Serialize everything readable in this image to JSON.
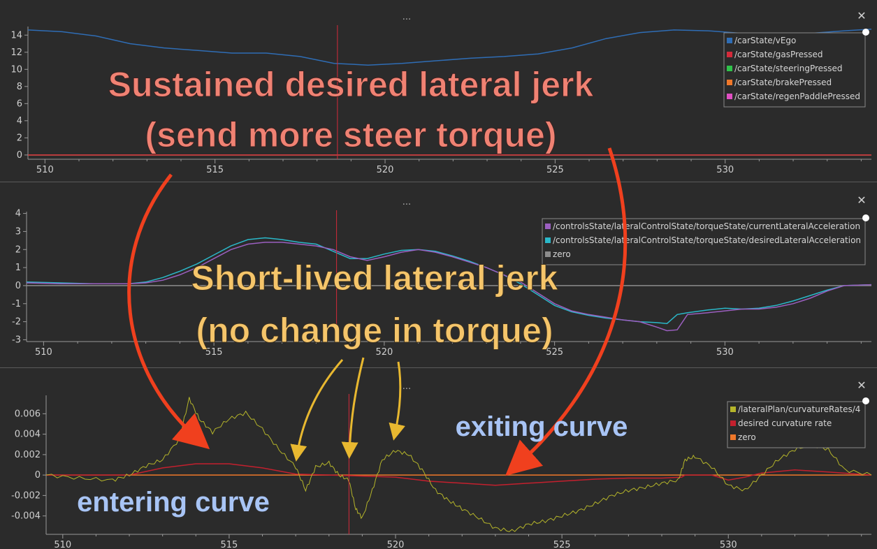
{
  "panels": [
    {
      "id": "top",
      "menu_label": "...",
      "close_label": "✕",
      "legend": [
        {
          "label": "/carState/vEgo",
          "color": "#2f6db5"
        },
        {
          "label": "/carState/gasPressed",
          "color": "#d42a3a"
        },
        {
          "label": "/carState/steeringPressed",
          "color": "#2fc24a"
        },
        {
          "label": "/carState/brakePressed",
          "color": "#f0782a"
        },
        {
          "label": "/carState/regenPaddlePressed",
          "color": "#e04fc2"
        }
      ]
    },
    {
      "id": "middle",
      "menu_label": "...",
      "close_label": "✕",
      "legend": [
        {
          "label": "/controlsState/lateralControlState/torqueState/currentLateralAcceleration",
          "color": "#9b5fc0"
        },
        {
          "label": "/controlsState/lateralControlState/torqueState/desiredLateralAcceleration",
          "color": "#2ab8c9"
        },
        {
          "label": "zero",
          "color": "#8c8c8c"
        }
      ]
    },
    {
      "id": "bottom",
      "menu_label": "...",
      "close_label": "✕",
      "legend": [
        {
          "label": "/lateralPlan/curvatureRates/4",
          "color": "#b5b52a"
        },
        {
          "label": "desired curvature rate",
          "color": "#c4202e"
        },
        {
          "label": "zero",
          "color": "#f0782a"
        }
      ]
    }
  ],
  "annotations": {
    "sustained_line1": "Sustained desired lateral jerk",
    "sustained_line2": "(send more steer torque)",
    "short_line1": "Short-lived lateral jerk",
    "short_line2": "(no change in torque)",
    "exiting": "exiting curve",
    "entering": "entering curve",
    "colors": {
      "sustained": "#f08273",
      "short": "#f5c56a",
      "curve": "#a8c4f5",
      "arrow_red": "#f0401e",
      "arrow_yellow": "#e8b830",
      "cursor": "#d42a3a"
    }
  },
  "chart_data": [
    {
      "type": "line",
      "title": "",
      "xlabel": "",
      "ylabel": "",
      "xlim": [
        509.5,
        534.3
      ],
      "ylim": [
        -0.5,
        15
      ],
      "x_ticks": [
        510,
        515,
        520,
        525,
        530
      ],
      "y_ticks": [
        0,
        2,
        4,
        6,
        8,
        10,
        12,
        14
      ],
      "cursor_x": 518.6,
      "series": [
        {
          "name": "/carState/vEgo",
          "x": [
            509.5,
            510.5,
            511.5,
            512.5,
            513.5,
            514.5,
            515.5,
            516.5,
            517.5,
            518.5,
            519.5,
            520.5,
            521.5,
            522.5,
            523.5,
            524.5,
            525.5,
            526.5,
            527.5,
            528.5,
            529.5,
            530.5,
            531.5,
            532.5,
            533.5,
            534.3
          ],
          "y": [
            14.6,
            14.4,
            13.9,
            13.0,
            12.5,
            12.2,
            11.9,
            11.9,
            11.5,
            10.7,
            10.5,
            10.7,
            11.0,
            11.3,
            11.5,
            11.8,
            12.5,
            13.6,
            14.3,
            14.6,
            14.5,
            14.2,
            14.0,
            14.2,
            14.5,
            14.7
          ]
        },
        {
          "name": "/carState/gasPressed",
          "x": [
            509.5,
            534.3
          ],
          "y": [
            0,
            0
          ]
        },
        {
          "name": "/carState/steeringPressed",
          "x": [
            509.5,
            534.3
          ],
          "y": [
            0,
            0
          ]
        },
        {
          "name": "/carState/brakePressed",
          "x": [
            509.5,
            534.3
          ],
          "y": [
            0,
            0
          ]
        },
        {
          "name": "/carState/regenPaddlePressed",
          "x": [
            509.5,
            534.3
          ],
          "y": [
            0,
            0
          ]
        }
      ]
    },
    {
      "type": "line",
      "title": "",
      "xlabel": "",
      "ylabel": "",
      "xlim": [
        509.5,
        534.3
      ],
      "ylim": [
        -3.1,
        4.1
      ],
      "x_ticks": [
        510,
        515,
        520,
        525,
        530
      ],
      "y_ticks": [
        -3,
        -2,
        -1,
        0,
        1,
        2,
        3,
        4
      ],
      "cursor_x": 518.6,
      "series": [
        {
          "name": "/controlsState/lateralControlState/torqueState/currentLateralAcceleration",
          "x": [
            509.5,
            510.5,
            511.5,
            512.5,
            513.0,
            513.5,
            514.0,
            514.5,
            515.0,
            515.5,
            516.0,
            516.5,
            517.0,
            517.5,
            518.0,
            518.5,
            519.0,
            519.5,
            520.0,
            520.5,
            521.0,
            521.5,
            522.0,
            522.5,
            523.0,
            523.5,
            524.0,
            524.5,
            525.0,
            525.5,
            526.0,
            526.5,
            527.0,
            527.5,
            528.0,
            528.3,
            528.6,
            528.9,
            529.5,
            530.0,
            530.5,
            531.0,
            531.5,
            532.0,
            532.5,
            533.0,
            533.5,
            534.3
          ],
          "y": [
            0.15,
            0.1,
            0.1,
            0.1,
            0.15,
            0.3,
            0.6,
            1.0,
            1.5,
            2.0,
            2.3,
            2.4,
            2.4,
            2.3,
            2.2,
            2.0,
            1.6,
            1.4,
            1.6,
            1.85,
            2.0,
            1.85,
            1.6,
            1.3,
            1.0,
            0.6,
            0.2,
            -0.4,
            -1.0,
            -1.4,
            -1.6,
            -1.75,
            -1.9,
            -2.0,
            -2.3,
            -2.5,
            -2.45,
            -1.6,
            -1.5,
            -1.4,
            -1.3,
            -1.3,
            -1.2,
            -1.0,
            -0.7,
            -0.3,
            0.0,
            0.05
          ]
        },
        {
          "name": "/controlsState/lateralControlState/torqueState/desiredLateralAcceleration",
          "x": [
            509.5,
            510.5,
            511.5,
            512.5,
            513.0,
            513.5,
            514.0,
            514.5,
            515.0,
            515.5,
            516.0,
            516.5,
            517.0,
            517.5,
            518.0,
            518.5,
            519.0,
            519.5,
            520.0,
            520.5,
            521.0,
            521.5,
            522.0,
            522.5,
            523.0,
            523.5,
            524.0,
            524.5,
            525.0,
            525.5,
            526.0,
            526.5,
            527.0,
            527.5,
            528.0,
            528.3,
            528.6,
            528.9,
            529.5,
            530.0,
            530.5,
            531.0,
            531.5,
            532.0,
            532.5,
            533.0,
            533.5,
            534.3
          ],
          "y": [
            0.2,
            0.15,
            0.1,
            0.1,
            0.2,
            0.45,
            0.8,
            1.2,
            1.7,
            2.2,
            2.55,
            2.65,
            2.55,
            2.4,
            2.3,
            1.9,
            1.5,
            1.5,
            1.75,
            1.95,
            2.0,
            1.9,
            1.65,
            1.35,
            1.0,
            0.6,
            0.1,
            -0.5,
            -1.1,
            -1.45,
            -1.65,
            -1.8,
            -1.9,
            -2.0,
            -2.05,
            -2.1,
            -1.6,
            -1.5,
            -1.35,
            -1.25,
            -1.3,
            -1.25,
            -1.1,
            -0.85,
            -0.55,
            -0.25,
            0.0,
            0.05
          ]
        },
        {
          "name": "zero",
          "x": [
            509.5,
            534.3
          ],
          "y": [
            0,
            0
          ]
        }
      ]
    },
    {
      "type": "line",
      "title": "",
      "xlabel": "",
      "ylabel": "",
      "xlim": [
        509.5,
        534.3
      ],
      "ylim": [
        -0.0058,
        0.0078
      ],
      "x_ticks": [
        510,
        515,
        520,
        525,
        530
      ],
      "y_ticks": [
        -0.004,
        -0.002,
        0,
        0.002,
        0.004,
        0.006
      ],
      "y_tick_labels": [
        "-0.004",
        "-0.002",
        "0",
        "0.002",
        "0.004",
        "0.006"
      ],
      "cursor_x": 518.6,
      "series": [
        {
          "name": "/lateralPlan/curvatureRates/4",
          "x": [
            509.5,
            510.5,
            511.5,
            512.0,
            512.5,
            513.0,
            513.5,
            513.8,
            514.1,
            514.5,
            515.0,
            515.5,
            516.0,
            516.5,
            517.0,
            517.3,
            517.6,
            518.0,
            518.3,
            518.6,
            518.8,
            519.0,
            519.3,
            519.6,
            520.0,
            520.4,
            520.8,
            521.2,
            521.6,
            522.0,
            522.5,
            523.0,
            523.5,
            524.0,
            524.5,
            525.0,
            525.5,
            526.0,
            526.5,
            527.0,
            527.5,
            528.0,
            528.5,
            528.7,
            529.0,
            529.5,
            530.0,
            530.5,
            531.0,
            531.5,
            532.0,
            532.5,
            533.0,
            533.5,
            534.3
          ],
          "y": [
            0.0,
            -0.0003,
            -0.0005,
            0.0,
            0.0009,
            0.0015,
            0.0035,
            0.0075,
            0.0055,
            0.0042,
            0.0055,
            0.0061,
            0.0045,
            0.0025,
            0.0008,
            -0.0015,
            0.0008,
            0.0012,
            0.0,
            -0.0005,
            -0.0033,
            -0.0042,
            -0.0015,
            0.0015,
            0.0024,
            0.002,
            0.0005,
            -0.0015,
            -0.0025,
            -0.0033,
            -0.0042,
            -0.0052,
            -0.0055,
            -0.0048,
            -0.0045,
            -0.004,
            -0.0035,
            -0.0028,
            -0.002,
            -0.0015,
            -0.0012,
            -0.0008,
            -0.0005,
            0.0015,
            0.0018,
            0.0008,
            -0.001,
            -0.0015,
            0.0,
            0.0015,
            0.0025,
            0.003,
            0.0025,
            0.0005,
            0.0
          ]
        },
        {
          "name": "desired curvature rate",
          "x": [
            509.5,
            512.0,
            513.0,
            514.0,
            515.0,
            516.0,
            517.0,
            518.0,
            519.0,
            520.0,
            521.0,
            522.0,
            523.0,
            524.0,
            525.0,
            526.0,
            527.0,
            528.0,
            528.6,
            528.7,
            529.5,
            530.0,
            530.5,
            531.0,
            532.0,
            533.0,
            534.3
          ],
          "y": [
            0.0,
            0.0,
            0.0007,
            0.0011,
            0.0011,
            0.0007,
            0.0001,
            0.0,
            -0.0001,
            -0.0002,
            -0.0006,
            -0.0008,
            -0.001,
            -0.0008,
            -0.0006,
            -0.0004,
            -0.0003,
            -0.0003,
            -0.0002,
            0.0,
            0.0,
            -0.0005,
            -0.0002,
            0.0002,
            0.0005,
            0.0003,
            0.0
          ]
        },
        {
          "name": "zero",
          "x": [
            509.5,
            534.3
          ],
          "y": [
            0,
            0
          ]
        }
      ]
    }
  ]
}
